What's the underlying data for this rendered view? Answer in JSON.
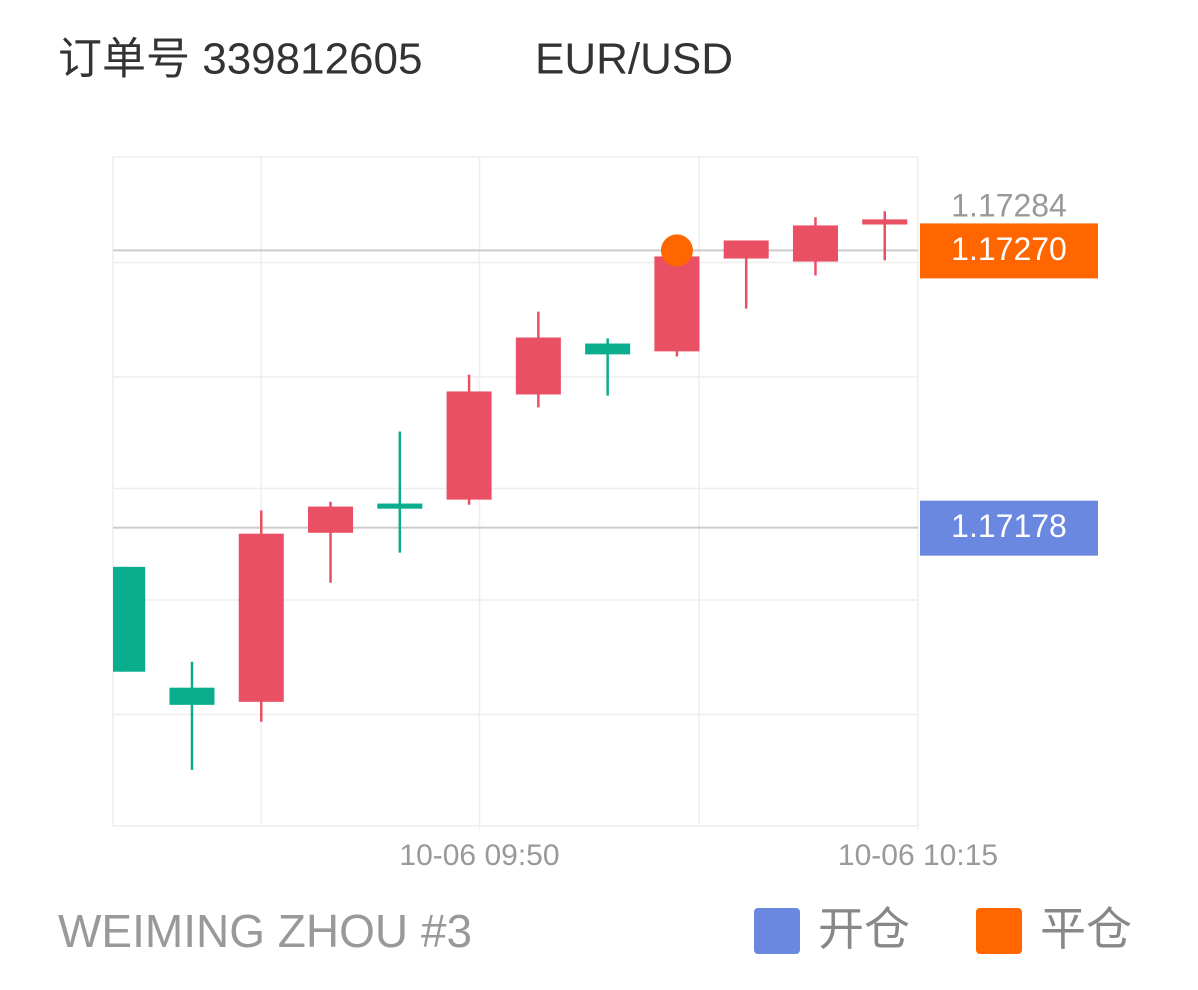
{
  "header": {
    "order": "订单号 339812605",
    "symbol": "EUR/USD"
  },
  "chart_data": {
    "type": "candlestick",
    "open": [
      1.17165,
      1.171249,
      1.171202,
      1.171763,
      1.17186,
      1.171873,
      1.172222,
      1.172391,
      1.172365,
      1.172673,
      1.172663,
      1.172786
    ],
    "high": [
      1.17165,
      1.171335,
      1.171837,
      1.171866,
      1.172099,
      1.172288,
      1.172497,
      1.172408,
      1.1727,
      1.172733,
      1.17281,
      1.17283
    ],
    "low": [
      1.171302,
      1.170976,
      1.171136,
      1.171597,
      1.171697,
      1.171856,
      1.172179,
      1.172218,
      1.172348,
      1.172507,
      1.172617,
      1.172667
    ],
    "close": [
      1.171302,
      1.171192,
      1.17176,
      1.17185,
      1.171843,
      1.172232,
      1.172411,
      1.172355,
      1.17268,
      1.172733,
      1.172783,
      1.172803
    ],
    "up_color": "#ea5063",
    "down_color": "#0aae8e",
    "ylim": [
      1.17079,
      1.17301
    ],
    "ygrid": [
      1.17266,
      1.17228,
      1.17191,
      1.17154,
      1.17116
    ],
    "xlim": [
      -0.14,
      11.48
    ],
    "xgrid": [
      2,
      5.15,
      8.32
    ],
    "xticks": [
      {
        "value": 5.15,
        "label": "10-06 09:50"
      },
      {
        "value": 11.48,
        "label": "10-06 10:15"
      }
    ],
    "open_line": {
      "value": 1.17178,
      "color": "#6b88e0"
    },
    "close_line": {
      "value": 1.1727,
      "label": "1.17270",
      "color": "#ff6600"
    },
    "close_marker": {
      "x": 8,
      "value": 1.1727,
      "color": "#ff6600"
    },
    "last_price": {
      "value": 1.17284
    }
  },
  "footer": {
    "account": "WEIMING ZHOU #3",
    "legend": [
      {
        "name": "开仓",
        "color": "#6b88e0"
      },
      {
        "name": "平仓",
        "color": "#ff6600"
      }
    ]
  }
}
